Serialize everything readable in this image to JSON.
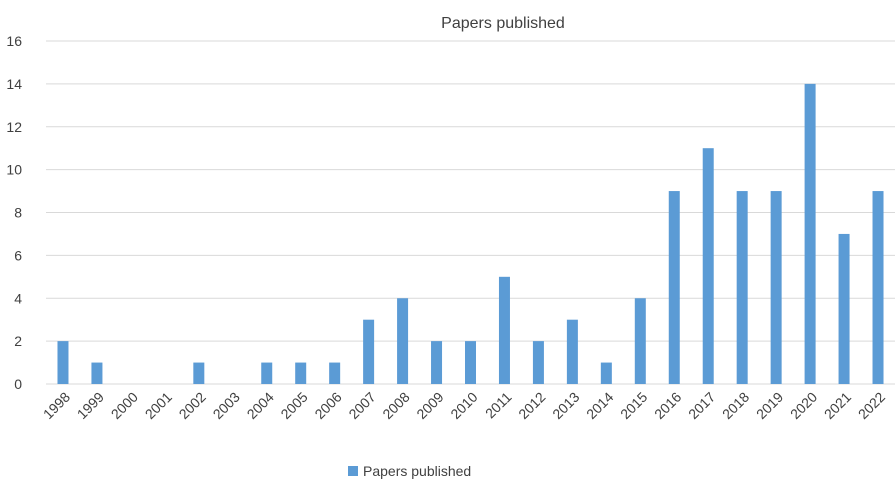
{
  "chart_data": {
    "type": "bar",
    "title": "Papers published",
    "xlabel": "",
    "ylabel": "",
    "categories": [
      "1998",
      "1999",
      "2000",
      "2001",
      "2002",
      "2003",
      "2004",
      "2005",
      "2006",
      "2007",
      "2008",
      "2009",
      "2010",
      "2011",
      "2012",
      "2013",
      "2014",
      "2015",
      "2016",
      "2017",
      "2018",
      "2019",
      "2020",
      "2021",
      "2022"
    ],
    "series": [
      {
        "name": "Papers published",
        "values": [
          2,
          1,
          0,
          0,
          1,
          0,
          1,
          1,
          1,
          3,
          4,
          2,
          2,
          5,
          2,
          3,
          1,
          4,
          9,
          11,
          9,
          9,
          14,
          7,
          9
        ]
      }
    ],
    "ylim": [
      0,
      16
    ],
    "yticks": [
      0,
      2,
      4,
      6,
      8,
      10,
      12,
      14,
      16
    ],
    "grid": true,
    "legend": "bottom",
    "colors": {
      "bar": "#5b9bd5",
      "grid": "#d9d9d9",
      "text": "#404040"
    }
  }
}
